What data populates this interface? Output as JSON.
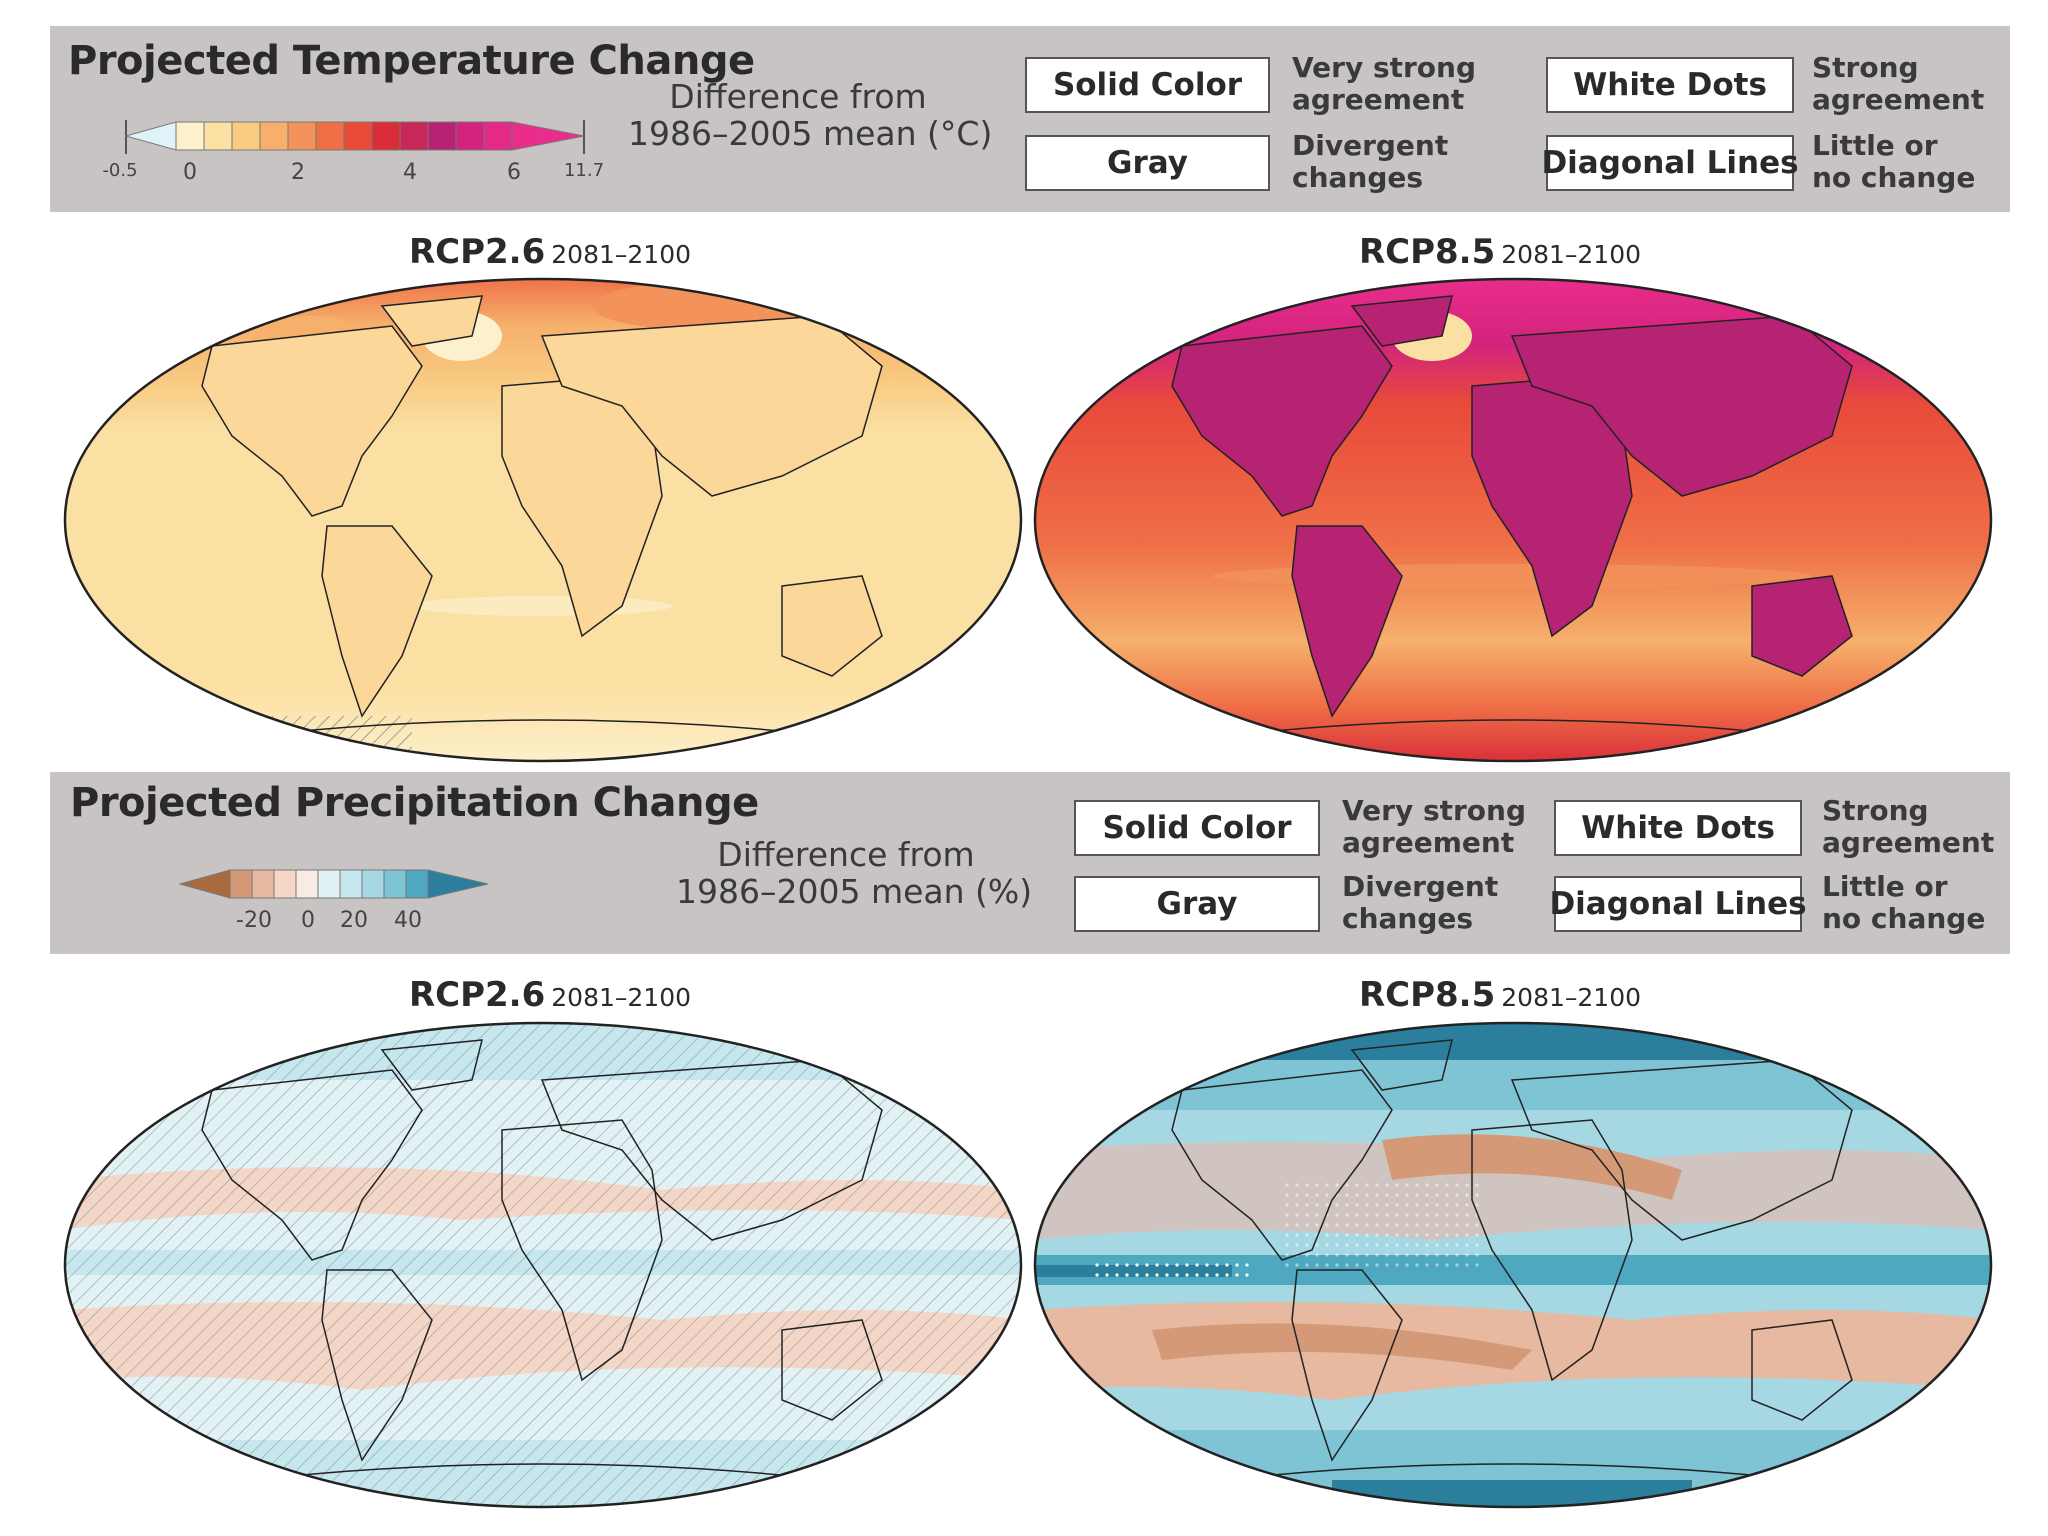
{
  "colors": {
    "band_bg": "#c9c4c4",
    "temp_ramp": [
      "#dff3f8",
      "#fdf0cc",
      "#fbe0a4",
      "#f9cb83",
      "#f6b06c",
      "#f3925a",
      "#ef6f47",
      "#e84a3a",
      "#d92e3a",
      "#c9275a",
      "#b52372",
      "#d2237e",
      "#ea2d8a"
    ],
    "precip_ramp": [
      "#a76b3e",
      "#d49a78",
      "#e6b9a0",
      "#f4d6c6",
      "#f8ebe4",
      "#e2f1f4",
      "#c7e7ee",
      "#a6d8e3",
      "#7fc4d5",
      "#4ea8c0",
      "#2b7f9c"
    ]
  },
  "temperature": {
    "title": "Projected Temperature Change",
    "difference_label": [
      "Difference from",
      "1986–2005 mean (°C)"
    ],
    "scale_ticks": [
      {
        "label": "-0.5",
        "value": -0.5
      },
      {
        "label": "0",
        "value": 0
      },
      {
        "label": "2",
        "value": 2
      },
      {
        "label": "4",
        "value": 4
      },
      {
        "label": "6",
        "value": 6
      },
      {
        "label": "11.7",
        "value": 11.7
      }
    ],
    "key": [
      {
        "box": "Solid Color",
        "desc": [
          "Very strong",
          "agreement"
        ]
      },
      {
        "box": "Gray",
        "desc": [
          "Divergent",
          "changes"
        ]
      },
      {
        "box": "White Dots",
        "desc": [
          "Strong",
          "agreement"
        ]
      },
      {
        "box": "Diagonal Lines",
        "desc": [
          "Little or",
          "no change"
        ]
      }
    ],
    "maps": [
      {
        "scenario": "RCP2.6",
        "period": "2081–2100"
      },
      {
        "scenario": "RCP8.5",
        "period": "2081–2100"
      }
    ]
  },
  "precipitation": {
    "title": "Projected Precipitation Change",
    "difference_label": [
      "Difference from",
      "1986–2005 mean (%)"
    ],
    "scale_ticks": [
      {
        "label": "-20",
        "value": -20
      },
      {
        "label": "0",
        "value": 0
      },
      {
        "label": "20",
        "value": 20
      },
      {
        "label": "40",
        "value": 40
      }
    ],
    "key": [
      {
        "box": "Solid Color",
        "desc": [
          "Very strong",
          "agreement"
        ]
      },
      {
        "box": "Gray",
        "desc": [
          "Divergent",
          "changes"
        ]
      },
      {
        "box": "White Dots",
        "desc": [
          "Strong",
          "agreement"
        ]
      },
      {
        "box": "Diagonal Lines",
        "desc": [
          "Little or",
          "no change"
        ]
      }
    ],
    "maps": [
      {
        "scenario": "RCP2.6",
        "period": "2081–2100"
      },
      {
        "scenario": "RCP8.5",
        "period": "2081–2100"
      }
    ]
  }
}
